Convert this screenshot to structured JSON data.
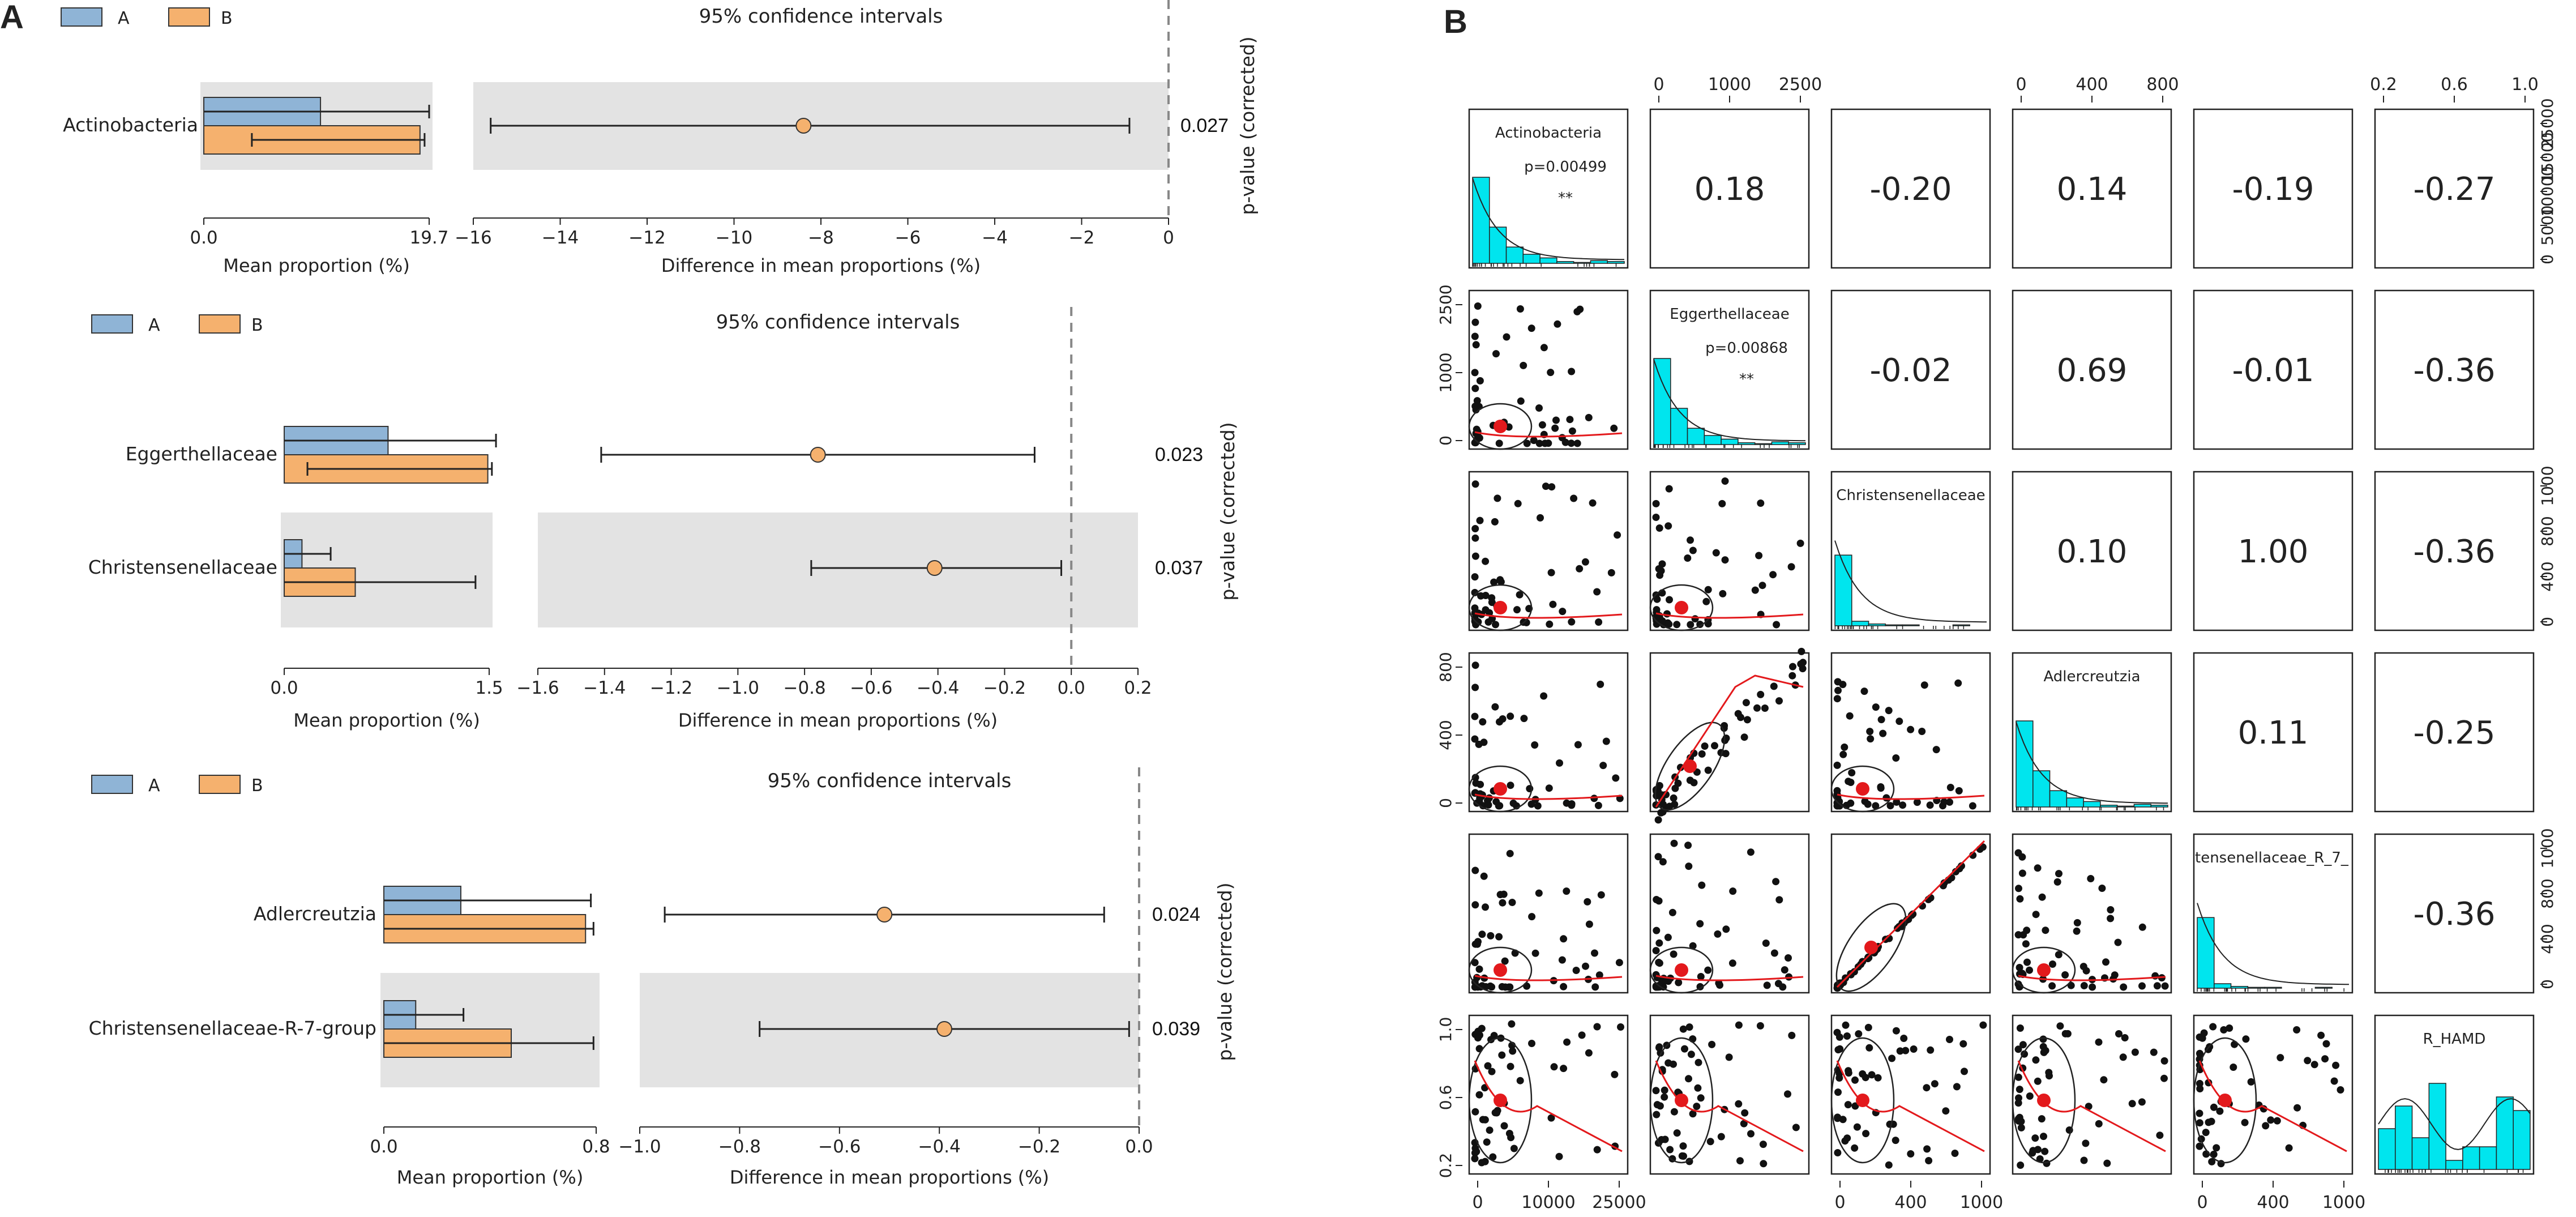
{
  "panel_labels": {
    "a": "A",
    "b": "B"
  },
  "colors": {
    "group_a": "#8fb4d6",
    "group_b": "#f5b16e",
    "shade": "#e3e3e3",
    "hist": "#00e5ee",
    "point": "#111111",
    "centroid": "#e3191c",
    "smooth": "#e3191c"
  },
  "legend": {
    "a": "A",
    "b": "B"
  },
  "labels": {
    "ci_title": "95% confidence intervals",
    "mean_axis": "Mean proportion (%)",
    "diff_axis": "Difference in mean proportions (%)",
    "pvalue_axis": "p-value (corrected)"
  },
  "chart_data": [
    {
      "type": "bar",
      "panel": "A-1",
      "title": "95% confidence intervals",
      "features": [
        "Actinobacteria"
      ],
      "mean_proportion": {
        "xlabel": "Mean proportion (%)",
        "xlim": [
          0,
          19.7
        ],
        "ticks": [
          "0.0",
          "19.7"
        ],
        "series": [
          {
            "name": "A",
            "values": [
              10.2
            ],
            "err_low": [
              0
            ],
            "err_high": [
              19.7
            ]
          },
          {
            "name": "B",
            "values": [
              18.9
            ],
            "err_low": [
              4.2
            ],
            "err_high": [
              19.3
            ]
          }
        ]
      },
      "difference": {
        "xlabel": "Difference in mean proportions (%)",
        "xlim": [
          -16,
          0
        ],
        "ticks": [
          "−16",
          "−14",
          "−12",
          "−10",
          "−8",
          "−6",
          "−4",
          "−2",
          "0"
        ],
        "estimate": [
          -8.4
        ],
        "ci_low": [
          -15.6
        ],
        "ci_high": [
          -0.9
        ]
      },
      "p_values": [
        "0.027"
      ]
    },
    {
      "type": "bar",
      "panel": "A-2",
      "title": "95% confidence intervals",
      "features": [
        "Eggerthellaceae",
        "Christensenellaceae"
      ],
      "mean_proportion": {
        "xlabel": "Mean proportion (%)",
        "xlim": [
          0,
          1.5
        ],
        "ticks": [
          "0.0",
          "1.5"
        ],
        "series": [
          {
            "name": "A",
            "values": [
              0.76,
              0.13
            ],
            "err_low": [
              0,
              0
            ],
            "err_high": [
              1.55,
              0.34
            ]
          },
          {
            "name": "B",
            "values": [
              1.49,
              0.52
            ],
            "err_low": [
              0.17,
              0
            ],
            "err_high": [
              1.52,
              1.4
            ]
          }
        ]
      },
      "difference": {
        "xlabel": "Difference in mean proportions (%)",
        "xlim": [
          -1.6,
          0.2
        ],
        "ticks": [
          "−1.6",
          "−1.4",
          "−1.2",
          "−1.0",
          "−0.8",
          "−0.6",
          "−0.4",
          "−0.2",
          "0.0",
          "0.2"
        ],
        "estimate": [
          -0.76,
          -0.41
        ],
        "ci_low": [
          -1.41,
          -0.78
        ],
        "ci_high": [
          -0.11,
          -0.03
        ]
      },
      "p_values": [
        "0.023",
        "0.037"
      ]
    },
    {
      "type": "bar",
      "panel": "A-3",
      "title": "95% confidence intervals",
      "features": [
        "Adlercreutzia",
        "Christensenellaceae-R-7-group"
      ],
      "mean_proportion": {
        "xlabel": "Mean proportion (%)",
        "xlim": [
          0,
          0.8
        ],
        "ticks": [
          "0.0",
          "0.8"
        ],
        "series": [
          {
            "name": "A",
            "values": [
              0.29,
              0.12
            ],
            "err_low": [
              0,
              0
            ],
            "err_high": [
              0.78,
              0.3
            ]
          },
          {
            "name": "B",
            "values": [
              0.76,
              0.48
            ],
            "err_low": [
              0,
              0
            ],
            "err_high": [
              0.79,
              0.79
            ]
          }
        ]
      },
      "difference": {
        "xlabel": "Difference in mean proportions (%)",
        "xlim": [
          -1.0,
          0.0
        ],
        "ticks": [
          "−1.0",
          "−0.8",
          "−0.6",
          "−0.4",
          "−0.2",
          "0.0"
        ],
        "estimate": [
          -0.51,
          -0.39
        ],
        "ci_low": [
          -0.95,
          -0.76
        ],
        "ci_high": [
          -0.07,
          -0.02
        ]
      },
      "p_values": [
        "0.024",
        "0.039"
      ]
    },
    {
      "type": "scatter",
      "panel": "B",
      "title": "",
      "variables": [
        "Actinobacteria",
        "Eggerthellaceae",
        "Christensenellaceae",
        "Adlercreutzia",
        "tensenellaceae_R_7_",
        "R_HAMD"
      ],
      "diag_annotations": [
        {
          "p": "p=0.00499",
          "stars": "**"
        },
        {
          "p": "p=0.00868",
          "stars": "**"
        },
        null,
        null,
        null,
        null
      ],
      "correlations": [
        {
          "row": 1,
          "col": 2,
          "value": "0.18"
        },
        {
          "row": 1,
          "col": 3,
          "value": "-0.20"
        },
        {
          "row": 1,
          "col": 4,
          "value": "0.14"
        },
        {
          "row": 1,
          "col": 5,
          "value": "-0.19"
        },
        {
          "row": 1,
          "col": 6,
          "value": "-0.27"
        },
        {
          "row": 2,
          "col": 3,
          "value": "-0.02"
        },
        {
          "row": 2,
          "col": 4,
          "value": "0.69"
        },
        {
          "row": 2,
          "col": 5,
          "value": "-0.01"
        },
        {
          "row": 2,
          "col": 6,
          "value": "-0.36"
        },
        {
          "row": 3,
          "col": 4,
          "value": "0.10"
        },
        {
          "row": 3,
          "col": 5,
          "value": "1.00"
        },
        {
          "row": 3,
          "col": 6,
          "value": "-0.36"
        },
        {
          "row": 4,
          "col": 5,
          "value": "0.11"
        },
        {
          "row": 4,
          "col": 6,
          "value": "-0.25"
        },
        {
          "row": 5,
          "col": 6,
          "value": "-0.36"
        }
      ],
      "top_axes": [
        {
          "col": 2,
          "ticks": [
            "0",
            "1000",
            "2500"
          ]
        },
        {
          "col": 4,
          "ticks": [
            "0",
            "400",
            "800"
          ]
        },
        {
          "col": 6,
          "ticks": [
            "0.2",
            "0.6",
            "1.0"
          ]
        }
      ],
      "bottom_axes": [
        {
          "col": 1,
          "ticks": [
            "0",
            "10000",
            "25000"
          ]
        },
        {
          "col": 3,
          "ticks": [
            "0",
            "400",
            "1000"
          ]
        },
        {
          "col": 5,
          "ticks": [
            "0",
            "400",
            "1000"
          ]
        }
      ],
      "left_axes": [
        {
          "row": 2,
          "ticks": [
            "0",
            "1000",
            "2500"
          ]
        },
        {
          "row": 4,
          "ticks": [
            "0",
            "400",
            "800"
          ]
        },
        {
          "row": 6,
          "ticks": [
            "0.2",
            "0.6",
            "1.0"
          ]
        }
      ],
      "right_axes": [
        {
          "row": 1,
          "ticks": [
            "0",
            "5000",
            "10000",
            "15000",
            "25000"
          ]
        },
        {
          "row": 3,
          "ticks": [
            "0",
            "400",
            "800",
            "1000"
          ]
        },
        {
          "row": 5,
          "ticks": [
            "0",
            "400",
            "800",
            "1000"
          ]
        }
      ]
    }
  ]
}
